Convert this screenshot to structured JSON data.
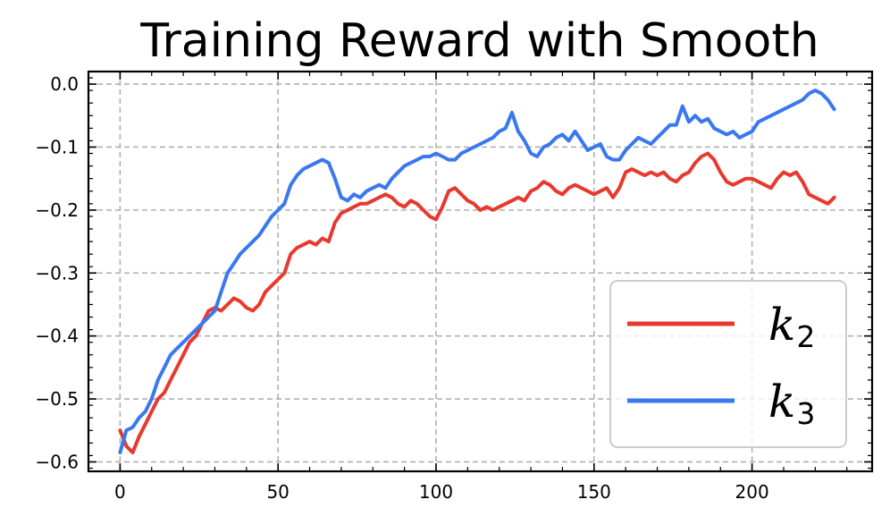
{
  "chart_data": {
    "type": "line",
    "title": "Training Reward with Smooth",
    "xlabel": "",
    "ylabel": "",
    "xlim": [
      -10,
      238
    ],
    "ylim": [
      -0.615,
      0.02
    ],
    "xticks": [
      0,
      50,
      100,
      150,
      200
    ],
    "xtick_labels": [
      "0",
      "50",
      "100",
      "150",
      "200"
    ],
    "yticks": [
      0.0,
      -0.1,
      -0.2,
      -0.3,
      -0.4,
      -0.5,
      -0.6
    ],
    "ytick_labels": [
      "0.0",
      "−0.1",
      "−0.2",
      "−0.3",
      "−0.4",
      "−0.5",
      "−0.6"
    ],
    "grid": true,
    "legend_position": "lower-right",
    "series": [
      {
        "name": "k",
        "subscript": "2",
        "color": "#e8392f",
        "x": [
          0,
          2,
          4,
          6,
          8,
          10,
          12,
          14,
          16,
          18,
          20,
          22,
          24,
          26,
          28,
          30,
          32,
          34,
          36,
          38,
          40,
          42,
          44,
          46,
          48,
          50,
          52,
          54,
          56,
          58,
          60,
          62,
          64,
          66,
          68,
          70,
          72,
          74,
          76,
          78,
          80,
          82,
          84,
          86,
          88,
          90,
          92,
          94,
          96,
          98,
          100,
          102,
          104,
          106,
          108,
          110,
          112,
          114,
          116,
          118,
          120,
          122,
          124,
          126,
          128,
          130,
          132,
          134,
          136,
          138,
          140,
          142,
          144,
          146,
          148,
          150,
          152,
          154,
          156,
          158,
          160,
          162,
          164,
          166,
          168,
          170,
          172,
          174,
          176,
          178,
          180,
          182,
          184,
          186,
          188,
          190,
          192,
          194,
          196,
          198,
          200,
          202,
          204,
          206,
          208,
          210,
          212,
          214,
          216,
          218,
          220,
          222,
          224,
          226
        ],
        "values": [
          -0.55,
          -0.575,
          -0.585,
          -0.56,
          -0.54,
          -0.52,
          -0.5,
          -0.49,
          -0.47,
          -0.45,
          -0.43,
          -0.41,
          -0.4,
          -0.38,
          -0.36,
          -0.355,
          -0.36,
          -0.35,
          -0.34,
          -0.345,
          -0.355,
          -0.36,
          -0.35,
          -0.33,
          -0.32,
          -0.31,
          -0.3,
          -0.27,
          -0.26,
          -0.255,
          -0.25,
          -0.255,
          -0.245,
          -0.25,
          -0.22,
          -0.205,
          -0.2,
          -0.195,
          -0.19,
          -0.19,
          -0.185,
          -0.18,
          -0.175,
          -0.18,
          -0.19,
          -0.195,
          -0.185,
          -0.19,
          -0.2,
          -0.21,
          -0.215,
          -0.195,
          -0.17,
          -0.165,
          -0.175,
          -0.185,
          -0.19,
          -0.2,
          -0.195,
          -0.2,
          -0.195,
          -0.19,
          -0.185,
          -0.18,
          -0.185,
          -0.17,
          -0.165,
          -0.155,
          -0.16,
          -0.17,
          -0.175,
          -0.165,
          -0.16,
          -0.165,
          -0.17,
          -0.175,
          -0.17,
          -0.165,
          -0.18,
          -0.165,
          -0.14,
          -0.135,
          -0.14,
          -0.145,
          -0.14,
          -0.145,
          -0.14,
          -0.15,
          -0.155,
          -0.145,
          -0.14,
          -0.125,
          -0.115,
          -0.11,
          -0.12,
          -0.14,
          -0.155,
          -0.16,
          -0.155,
          -0.15,
          -0.15,
          -0.155,
          -0.16,
          -0.165,
          -0.15,
          -0.14,
          -0.145,
          -0.14,
          -0.155,
          -0.175,
          -0.18,
          -0.185,
          -0.19,
          -0.18
        ]
      },
      {
        "name": "k",
        "subscript": "3",
        "color": "#3a78ef",
        "x": [
          0,
          2,
          4,
          6,
          8,
          10,
          12,
          14,
          16,
          18,
          20,
          22,
          24,
          26,
          28,
          30,
          32,
          34,
          36,
          38,
          40,
          42,
          44,
          46,
          48,
          50,
          52,
          54,
          56,
          58,
          60,
          62,
          64,
          66,
          68,
          70,
          72,
          74,
          76,
          78,
          80,
          82,
          84,
          86,
          88,
          90,
          92,
          94,
          96,
          98,
          100,
          102,
          104,
          106,
          108,
          110,
          112,
          114,
          116,
          118,
          120,
          122,
          124,
          126,
          128,
          130,
          132,
          134,
          136,
          138,
          140,
          142,
          144,
          146,
          148,
          150,
          152,
          154,
          156,
          158,
          160,
          162,
          164,
          166,
          168,
          170,
          172,
          174,
          176,
          178,
          180,
          182,
          184,
          186,
          188,
          190,
          192,
          194,
          196,
          198,
          200,
          202,
          204,
          206,
          208,
          210,
          212,
          214,
          216,
          218,
          220,
          222,
          224,
          226
        ],
        "values": [
          -0.585,
          -0.55,
          -0.545,
          -0.53,
          -0.52,
          -0.5,
          -0.47,
          -0.45,
          -0.43,
          -0.42,
          -0.41,
          -0.4,
          -0.39,
          -0.38,
          -0.37,
          -0.36,
          -0.33,
          -0.3,
          -0.285,
          -0.27,
          -0.26,
          -0.25,
          -0.24,
          -0.225,
          -0.21,
          -0.2,
          -0.19,
          -0.16,
          -0.145,
          -0.135,
          -0.13,
          -0.125,
          -0.12,
          -0.125,
          -0.15,
          -0.18,
          -0.185,
          -0.175,
          -0.18,
          -0.17,
          -0.165,
          -0.16,
          -0.165,
          -0.15,
          -0.14,
          -0.13,
          -0.125,
          -0.12,
          -0.115,
          -0.115,
          -0.11,
          -0.115,
          -0.12,
          -0.12,
          -0.11,
          -0.105,
          -0.1,
          -0.095,
          -0.09,
          -0.085,
          -0.075,
          -0.07,
          -0.045,
          -0.075,
          -0.09,
          -0.11,
          -0.115,
          -0.1,
          -0.095,
          -0.085,
          -0.08,
          -0.09,
          -0.075,
          -0.09,
          -0.105,
          -0.1,
          -0.095,
          -0.115,
          -0.12,
          -0.12,
          -0.105,
          -0.095,
          -0.085,
          -0.09,
          -0.095,
          -0.085,
          -0.075,
          -0.065,
          -0.065,
          -0.035,
          -0.06,
          -0.05,
          -0.06,
          -0.055,
          -0.07,
          -0.075,
          -0.08,
          -0.075,
          -0.085,
          -0.08,
          -0.075,
          -0.06,
          -0.055,
          -0.05,
          -0.045,
          -0.04,
          -0.035,
          -0.03,
          -0.025,
          -0.015,
          -0.01,
          -0.015,
          -0.025,
          -0.04
        ]
      }
    ]
  }
}
